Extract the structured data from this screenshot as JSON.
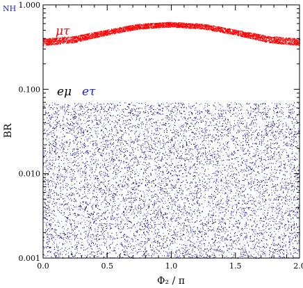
{
  "chart_data": {
    "type": "scatter",
    "corner_label": "NH",
    "xlabel": "Φ₂ / π",
    "ylabel": "BR",
    "xlim": [
      0.0,
      2.0
    ],
    "ylim": [
      0.001,
      1.0
    ],
    "yscale": "log",
    "x_ticks": [
      "0.0",
      "0.5",
      "1.0",
      "1.5",
      "2.0"
    ],
    "y_ticks": [
      "0.001",
      "0.010",
      "0.100",
      "1.000"
    ],
    "grid": false,
    "colors": {
      "mu_tau": "#ff0000",
      "e_mu": "#000000",
      "e_tau": "#2020d0"
    },
    "series": [
      {
        "name": "μτ",
        "color": "#ff0000",
        "band": {
          "x": [
            0.0,
            0.25,
            0.5,
            0.75,
            1.0,
            1.25,
            1.5,
            1.75,
            2.0
          ],
          "y_low": [
            0.33,
            0.36,
            0.44,
            0.52,
            0.55,
            0.52,
            0.44,
            0.36,
            0.33
          ],
          "y_high": [
            0.4,
            0.43,
            0.51,
            0.6,
            0.63,
            0.6,
            0.51,
            0.43,
            0.4
          ]
        }
      },
      {
        "name": "eμ",
        "color": "#000000",
        "band": {
          "x": [
            0.0,
            2.0
          ],
          "y_low": [
            0.001,
            0.001
          ],
          "y_high": [
            0.07,
            0.07
          ]
        }
      },
      {
        "name": "eτ",
        "color": "#2020d0",
        "band": {
          "x": [
            0.0,
            2.0
          ],
          "y_low": [
            0.001,
            0.001
          ],
          "y_high": [
            0.07,
            0.07
          ]
        }
      }
    ]
  }
}
